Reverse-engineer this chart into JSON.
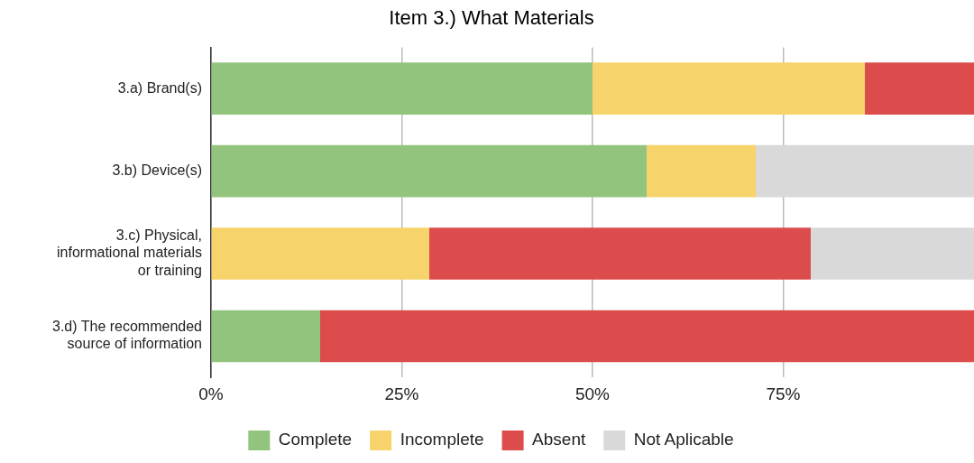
{
  "chart_data": {
    "type": "bar",
    "orientation": "horizontal",
    "stacked": true,
    "title": "Item 3.) What Materials",
    "categories": [
      "3.a) Brand(s)",
      "3.b) Device(s)",
      "3.c) Physical, informational materials or training",
      "3.d) The recommended source of information"
    ],
    "series": [
      {
        "name": "Complete",
        "color": "#93c47d",
        "values": [
          50,
          57.1,
          0,
          14.3
        ]
      },
      {
        "name": "Incomplete",
        "color": "#f6d36b",
        "values": [
          35.7,
          14.3,
          28.6,
          0
        ]
      },
      {
        "name": "Absent",
        "color": "#dc4c4c",
        "values": [
          14.3,
          0,
          50,
          85.7
        ]
      },
      {
        "name": "Not Aplicable",
        "color": "#d9d9d9",
        "values": [
          0,
          28.6,
          21.4,
          0
        ]
      }
    ],
    "xlim": [
      0,
      100
    ],
    "xticks": [
      {
        "value": 0,
        "label": "0%"
      },
      {
        "value": 25,
        "label": "25%"
      },
      {
        "value": 50,
        "label": "50%"
      },
      {
        "value": 75,
        "label": "75%"
      }
    ],
    "grid": "x",
    "legend": "bottom"
  }
}
